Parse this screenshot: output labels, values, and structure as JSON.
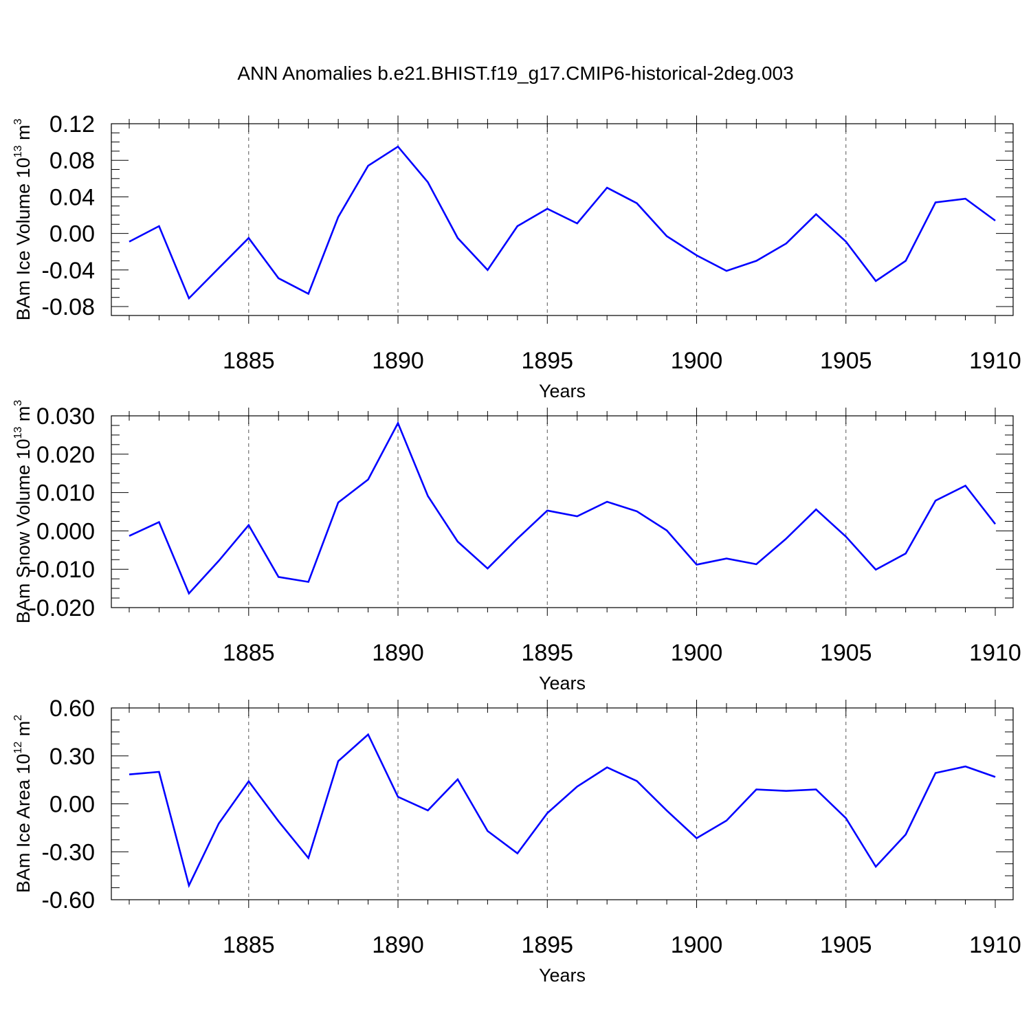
{
  "title": "ANN Anomalies b.e21.BHIST.f19_g17.CMIP6-historical-2deg.003",
  "colors": {
    "line": "#0000ff",
    "axis": "#000000",
    "grid": "#555555"
  },
  "chart_data": [
    {
      "type": "line",
      "ylabel": {
        "text": "BAm Ice Volume 10",
        "exp": "13",
        "unit": " m",
        "unit_exp": "3"
      },
      "xlabel": "Years",
      "xlim": [
        1881,
        1910
      ],
      "ylim": [
        -0.09,
        0.12
      ],
      "yticks": [
        0.12,
        0.08,
        0.04,
        0.0,
        -0.04,
        -0.08
      ],
      "yticklabels": [
        "0.12",
        "0.08",
        "0.04",
        "0.00",
        "-0.04",
        "-0.08"
      ],
      "xticks": [
        1885,
        1890,
        1895,
        1900,
        1905,
        1910
      ],
      "xticklabels": [
        "1885",
        "1890",
        "1895",
        "1900",
        "1905",
        "1910"
      ],
      "grid": "vertical dashed at major x ticks",
      "x": [
        1881,
        1882,
        1883,
        1884,
        1885,
        1886,
        1887,
        1888,
        1889,
        1890,
        1891,
        1892,
        1893,
        1894,
        1895,
        1896,
        1897,
        1898,
        1899,
        1900,
        1901,
        1902,
        1903,
        1904,
        1905,
        1906,
        1907,
        1908,
        1909,
        1910
      ],
      "series": [
        {
          "values": [
            -0.009,
            0.008,
            -0.071,
            -0.038,
            -0.005,
            -0.049,
            -0.066,
            0.018,
            0.074,
            0.095,
            0.056,
            -0.005,
            -0.04,
            0.008,
            0.027,
            0.011,
            0.05,
            0.033,
            -0.003,
            -0.024,
            -0.041,
            -0.03,
            -0.011,
            0.021,
            -0.009,
            -0.052,
            -0.03,
            0.034,
            0.038,
            0.014
          ]
        }
      ]
    },
    {
      "type": "line",
      "ylabel": {
        "text": "BAm Snow Volume 10",
        "exp": "13",
        "unit": " m",
        "unit_exp": "3"
      },
      "xlabel": "Years",
      "xlim": [
        1881,
        1910
      ],
      "ylim": [
        -0.02,
        0.03
      ],
      "yticks": [
        0.03,
        0.02,
        0.01,
        0.0,
        -0.01,
        -0.02
      ],
      "yticklabels": [
        "0.030",
        "0.020",
        "0.010",
        "0.000",
        "-0.010",
        "-0.020"
      ],
      "xticks": [
        1885,
        1890,
        1895,
        1900,
        1905,
        1910
      ],
      "xticklabels": [
        "1885",
        "1890",
        "1895",
        "1900",
        "1905",
        "1910"
      ],
      "grid": "vertical dashed at major x ticks",
      "x": [
        1881,
        1882,
        1883,
        1884,
        1885,
        1886,
        1887,
        1888,
        1889,
        1890,
        1891,
        1892,
        1893,
        1894,
        1895,
        1896,
        1897,
        1898,
        1899,
        1900,
        1901,
        1902,
        1903,
        1904,
        1905,
        1906,
        1907,
        1908,
        1909,
        1910
      ],
      "series": [
        {
          "values": [
            -0.0013,
            0.0023,
            -0.0163,
            -0.0078,
            0.0015,
            -0.012,
            -0.0133,
            0.0074,
            0.0134,
            0.0281,
            0.0091,
            -0.0028,
            -0.0098,
            -0.002,
            0.0053,
            0.0038,
            0.0076,
            0.0051,
            0.0001,
            -0.0088,
            -0.0072,
            -0.0087,
            -0.002,
            0.0056,
            -0.0015,
            -0.0101,
            -0.0059,
            0.0079,
            0.0118,
            0.0018
          ]
        }
      ]
    },
    {
      "type": "line",
      "ylabel": {
        "text": "BAm Ice Area 10",
        "exp": "12",
        "unit": " m",
        "unit_exp": "2"
      },
      "xlabel": "Years",
      "xlim": [
        1881,
        1910
      ],
      "ylim": [
        -0.6,
        0.6
      ],
      "yticks": [
        0.6,
        0.3,
        0.0,
        -0.3,
        -0.6
      ],
      "yticklabels": [
        "0.60",
        "0.30",
        "0.00",
        "-0.30",
        "-0.60"
      ],
      "xticks": [
        1885,
        1890,
        1895,
        1900,
        1905,
        1910
      ],
      "xticklabels": [
        "1885",
        "1890",
        "1895",
        "1900",
        "1905",
        "1910"
      ],
      "grid": "vertical dashed at major x ticks",
      "x": [
        1881,
        1882,
        1883,
        1884,
        1885,
        1886,
        1887,
        1888,
        1889,
        1890,
        1891,
        1892,
        1893,
        1894,
        1895,
        1896,
        1897,
        1898,
        1899,
        1900,
        1901,
        1902,
        1903,
        1904,
        1905,
        1906,
        1907,
        1908,
        1909,
        1910
      ],
      "series": [
        {
          "values": [
            0.184,
            0.2,
            -0.511,
            -0.123,
            0.141,
            -0.109,
            -0.339,
            0.267,
            0.434,
            0.044,
            -0.041,
            0.153,
            -0.17,
            -0.31,
            -0.058,
            0.108,
            0.228,
            0.143,
            -0.042,
            -0.215,
            -0.105,
            0.09,
            0.081,
            0.09,
            -0.09,
            -0.393,
            -0.192,
            0.193,
            0.234,
            0.168
          ]
        }
      ]
    }
  ]
}
